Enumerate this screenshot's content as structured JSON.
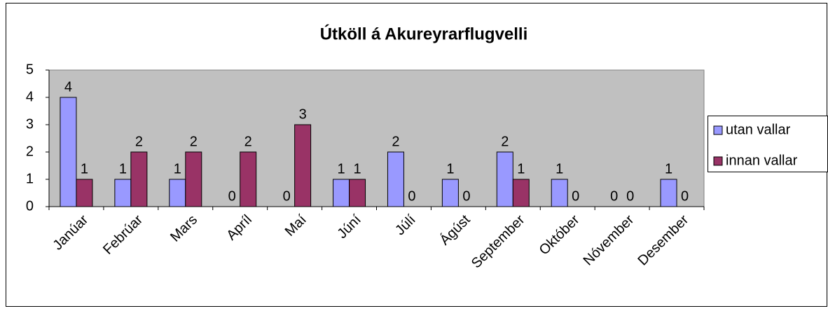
{
  "chart_data": {
    "type": "bar",
    "title": "Útköll á Akureyrarflugvelli",
    "categories": [
      "Janúar",
      "Febrúar",
      "Mars",
      "Apríl",
      "Maí",
      "Júní",
      "Júlí",
      "Ágúst",
      "September",
      "Október",
      "Nóvember",
      "Desember"
    ],
    "series": [
      {
        "name": "utan vallar",
        "color": "#9999ff",
        "values": [
          4,
          1,
          1,
          0,
          0,
          1,
          2,
          1,
          2,
          1,
          0,
          1
        ]
      },
      {
        "name": "innan vallar",
        "color": "#993366",
        "values": [
          1,
          2,
          2,
          2,
          3,
          1,
          0,
          0,
          1,
          0,
          0,
          0
        ]
      }
    ],
    "ylim": [
      0,
      5
    ],
    "yticks": [
      0,
      1,
      2,
      3,
      4,
      5
    ],
    "grid": false,
    "legend": "right"
  }
}
